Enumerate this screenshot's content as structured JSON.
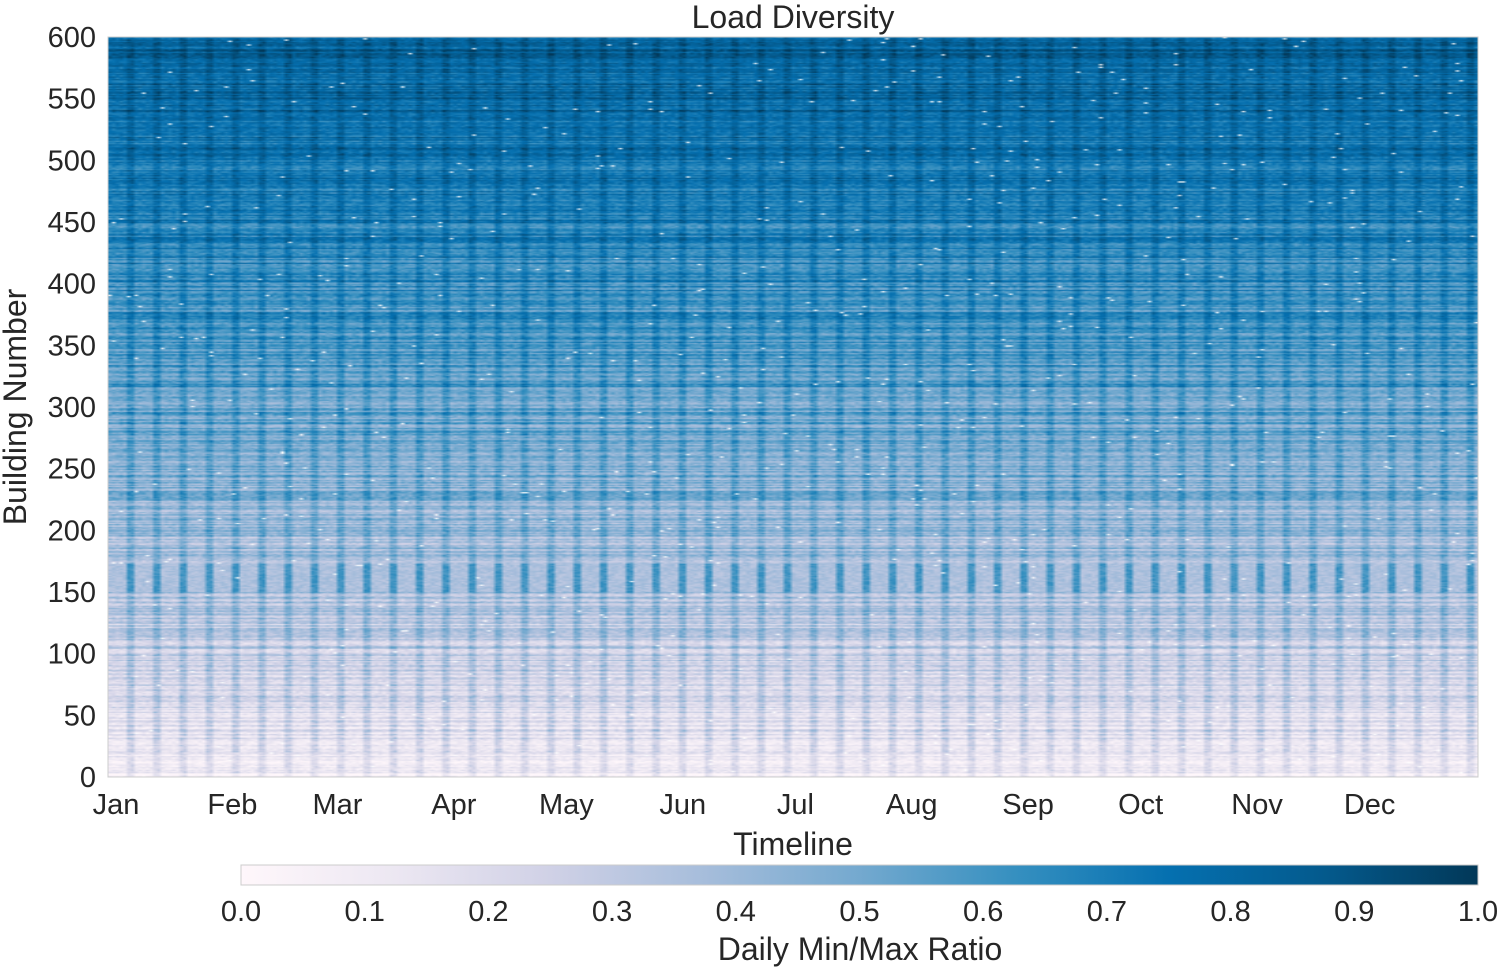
{
  "chart_data": {
    "type": "heatmap",
    "title": "Load Diversity",
    "xlabel": "Timeline",
    "ylabel": "Building Number",
    "x_tick_labels": [
      "Jan",
      "Feb",
      "Mar",
      "Apr",
      "May",
      "Jun",
      "Jul",
      "Aug",
      "Sep",
      "Oct",
      "Nov",
      "Dec"
    ],
    "y_tick_labels": [
      "0",
      "50",
      "100",
      "150",
      "200",
      "250",
      "300",
      "350",
      "400",
      "450",
      "500",
      "550",
      "600"
    ],
    "y_ticks": [
      0,
      50,
      100,
      150,
      200,
      250,
      300,
      350,
      400,
      450,
      500,
      550,
      600
    ],
    "ylim": [
      0,
      600
    ],
    "x_range_days": [
      0,
      365
    ],
    "n_buildings": 600,
    "n_days": 365,
    "grid": false,
    "colorbar": {
      "label": "Daily Min/Max Ratio",
      "orientation": "horizontal",
      "placement": "bottom",
      "range": [
        0.0,
        1.0
      ],
      "tick_labels": [
        "0.0",
        "0.1",
        "0.2",
        "0.3",
        "0.4",
        "0.5",
        "0.6",
        "0.7",
        "0.8",
        "0.9",
        "1.0"
      ],
      "ticks": [
        0.0,
        0.1,
        0.2,
        0.3,
        0.4,
        0.5,
        0.6,
        0.7,
        0.8,
        0.9,
        1.0
      ],
      "colormap": "PuBu",
      "color_stops": [
        {
          "value": 0.0,
          "color": "#fff7fb"
        },
        {
          "value": 0.125,
          "color": "#ece7f2"
        },
        {
          "value": 0.25,
          "color": "#d0d1e6"
        },
        {
          "value": 0.375,
          "color": "#a6bddb"
        },
        {
          "value": 0.5,
          "color": "#74a9cf"
        },
        {
          "value": 0.625,
          "color": "#3690c0"
        },
        {
          "value": 0.75,
          "color": "#0570b0"
        },
        {
          "value": 0.875,
          "color": "#045a8d"
        },
        {
          "value": 1.0,
          "color": "#023858"
        }
      ]
    },
    "pattern": "Ratio rises with building number (mostly 0.0–0.2 near building 0, about 0.7–0.8 near building 600); weekly vertical banding from weekend/weekday differences; white gaps are missing data."
  }
}
